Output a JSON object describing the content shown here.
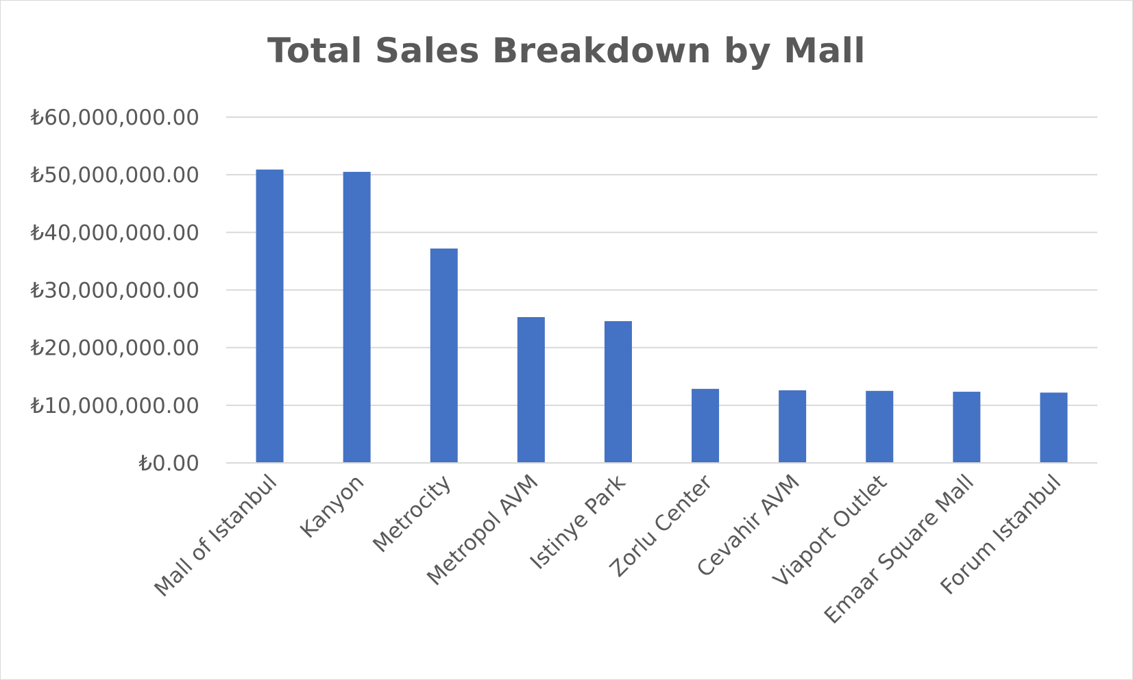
{
  "chart_data": {
    "type": "bar",
    "title": "Total Sales Breakdown by Mall",
    "xlabel": "",
    "ylabel": "",
    "categories": [
      "Mall of Istanbul",
      "Kanyon",
      "Metrocity",
      "Metropol AVM",
      "Istinye Park",
      "Zorlu Center",
      "Cevahir AVM",
      "Viaport Outlet",
      "Emaar Square Mall",
      "Forum Istanbul"
    ],
    "values": [
      50900000,
      50500000,
      37200000,
      25300000,
      24600000,
      12850000,
      12600000,
      12500000,
      12350000,
      12200000
    ],
    "ylim": [
      0,
      60000000
    ],
    "yticks": [
      0,
      10000000,
      20000000,
      30000000,
      40000000,
      50000000,
      60000000
    ],
    "ytick_labels": [
      "₺0.00",
      "₺10,000,000.00",
      "₺20,000,000.00",
      "₺30,000,000.00",
      "₺40,000,000.00",
      "₺50,000,000.00",
      "₺60,000,000.00"
    ],
    "grid": true,
    "legend": "none",
    "bar_color": "#4472c4",
    "grid_color": "#d9d9d9"
  }
}
